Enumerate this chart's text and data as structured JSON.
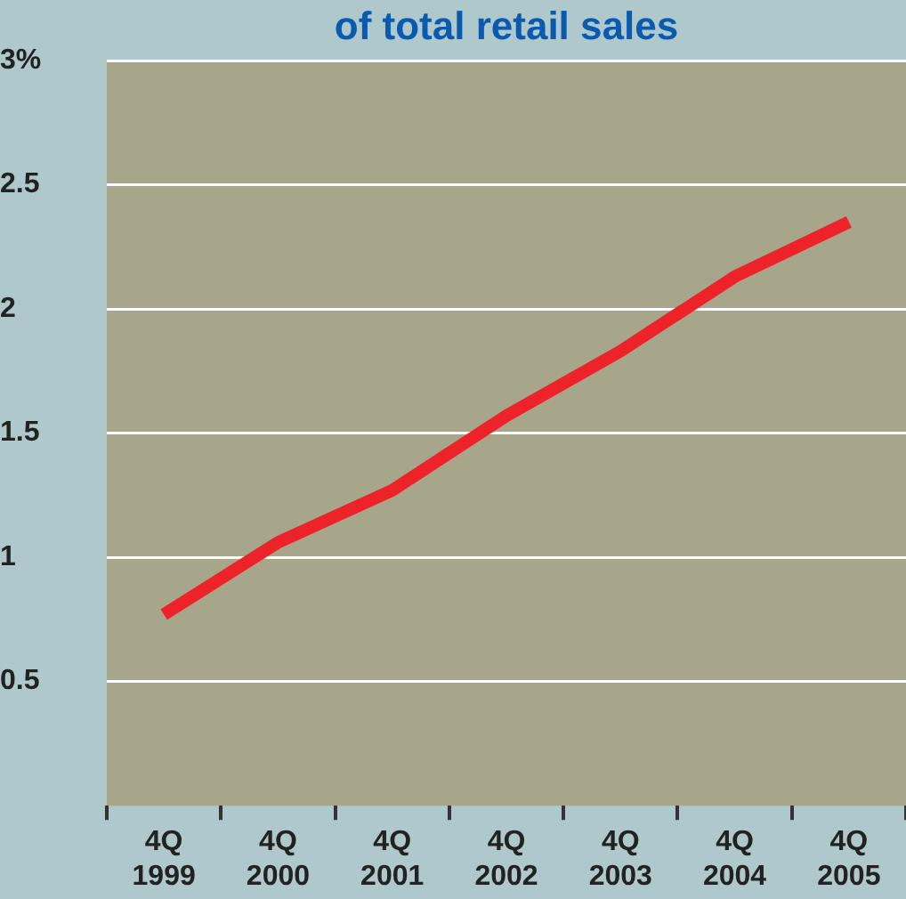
{
  "chart_data": {
    "type": "line",
    "title": "of total retail sales",
    "categories": [
      "4Q 1999",
      "4Q 2000",
      "4Q 2001",
      "4Q 2002",
      "4Q 2003",
      "4Q 2004",
      "4Q 2005"
    ],
    "series": [
      {
        "color": "#ee2229",
        "values": [
          0.77,
          1.06,
          1.27,
          1.57,
          1.83,
          2.13,
          2.35
        ]
      }
    ],
    "ylim": [
      0,
      3
    ],
    "yticks": [
      0.5,
      1,
      1.5,
      2,
      2.5,
      {
        "value": 3,
        "label": "3%"
      }
    ],
    "grid": "y",
    "legend": false,
    "marker": "none",
    "line_style": "solid"
  }
}
